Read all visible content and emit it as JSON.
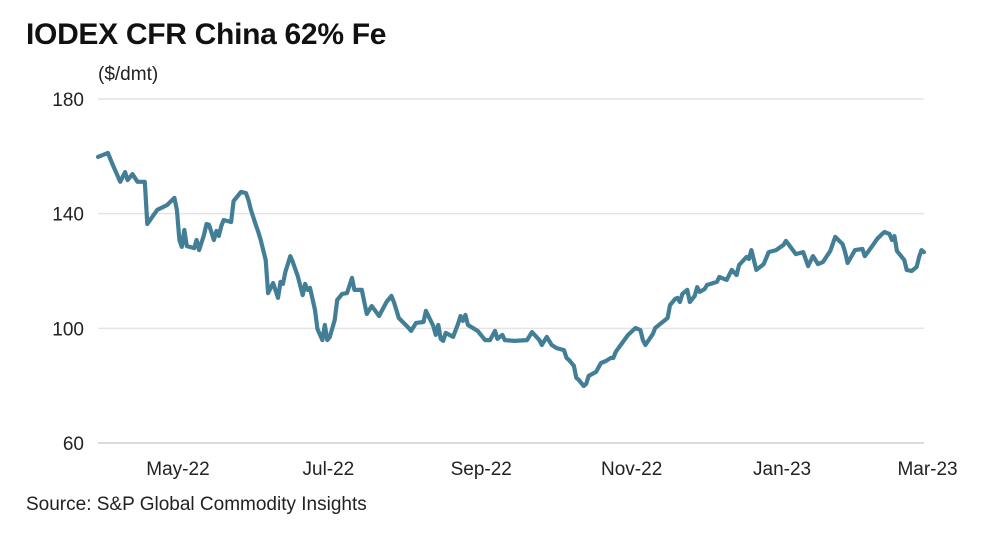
{
  "chart_data": {
    "type": "line",
    "title": "IODEX CFR China 62% Fe",
    "ylabel": "($/dmt)",
    "source": "Source: S&P Global Commodity Insights",
    "ylim": [
      60,
      180
    ],
    "yticks": [
      "180",
      "140",
      "100",
      "60"
    ],
    "ytick_values": [
      180,
      140,
      100,
      60
    ],
    "xlim": [
      "2022-04-01",
      "2023-03-02"
    ],
    "xticks": [
      {
        "label": "May-22",
        "date": "2022-05-01"
      },
      {
        "label": "Jul-22",
        "date": "2022-07-01"
      },
      {
        "label": "Sep-22",
        "date": "2022-09-01"
      },
      {
        "label": "Nov-22",
        "date": "2022-11-01"
      },
      {
        "label": "Jan-23",
        "date": "2023-01-01"
      },
      {
        "label": "Mar-23",
        "date": "2023-03-01"
      }
    ],
    "grid": "horizontal",
    "line_color": "#427f96",
    "series": [
      {
        "points": [
          [
            "2022-04-01",
            159.8
          ],
          [
            "2022-04-05",
            161.2
          ],
          [
            "2022-04-07",
            157.0
          ],
          [
            "2022-04-10",
            151.1
          ],
          [
            "2022-04-12",
            154.5
          ],
          [
            "2022-04-13",
            151.7
          ],
          [
            "2022-04-15",
            153.8
          ],
          [
            "2022-04-17",
            151.1
          ],
          [
            "2022-04-20",
            151.1
          ],
          [
            "2022-04-21",
            136.4
          ],
          [
            "2022-04-25",
            141.3
          ],
          [
            "2022-04-29",
            143.0
          ],
          [
            "2022-05-02",
            145.5
          ],
          [
            "2022-05-03",
            141.3
          ],
          [
            "2022-05-04",
            130.8
          ],
          [
            "2022-05-05",
            128.4
          ],
          [
            "2022-05-06",
            134.3
          ],
          [
            "2022-05-07",
            128.7
          ],
          [
            "2022-05-10",
            128.0
          ],
          [
            "2022-05-11",
            130.8
          ],
          [
            "2022-05-12",
            127.3
          ],
          [
            "2022-05-14",
            132.6
          ],
          [
            "2022-05-15",
            136.4
          ],
          [
            "2022-05-16",
            136.1
          ],
          [
            "2022-05-18",
            130.8
          ],
          [
            "2022-05-19",
            134.0
          ],
          [
            "2022-05-20",
            132.2
          ],
          [
            "2022-05-21",
            135.7
          ],
          [
            "2022-05-22",
            137.8
          ],
          [
            "2022-05-25",
            137.1
          ],
          [
            "2022-05-26",
            144.4
          ],
          [
            "2022-05-28",
            146.5
          ],
          [
            "2022-05-29",
            147.6
          ],
          [
            "2022-05-31",
            147.2
          ],
          [
            "2022-06-01",
            144.8
          ],
          [
            "2022-06-02",
            141.3
          ],
          [
            "2022-06-04",
            136.1
          ],
          [
            "2022-06-05",
            133.6
          ],
          [
            "2022-06-06",
            130.8
          ],
          [
            "2022-06-08",
            123.8
          ],
          [
            "2022-06-09",
            112.3
          ],
          [
            "2022-06-11",
            115.8
          ],
          [
            "2022-06-13",
            110.6
          ],
          [
            "2022-06-14",
            116.2
          ],
          [
            "2022-06-15",
            115.5
          ],
          [
            "2022-06-16",
            119.7
          ],
          [
            "2022-06-18",
            125.2
          ],
          [
            "2022-06-19",
            123.1
          ],
          [
            "2022-06-21",
            118.3
          ],
          [
            "2022-06-23",
            111.6
          ],
          [
            "2022-06-24",
            115.5
          ],
          [
            "2022-06-25",
            113.4
          ],
          [
            "2022-06-26",
            114.1
          ],
          [
            "2022-06-28",
            106.4
          ],
          [
            "2022-06-29",
            99.8
          ],
          [
            "2022-07-01",
            95.9
          ],
          [
            "2022-07-02",
            101.2
          ],
          [
            "2022-07-03",
            95.9
          ],
          [
            "2022-07-04",
            97.0
          ],
          [
            "2022-07-06",
            102.9
          ],
          [
            "2022-07-07",
            109.9
          ],
          [
            "2022-07-09",
            112.0
          ],
          [
            "2022-07-11",
            112.3
          ],
          [
            "2022-07-13",
            117.6
          ],
          [
            "2022-07-14",
            113.4
          ],
          [
            "2022-07-17",
            113.4
          ],
          [
            "2022-07-19",
            105.0
          ],
          [
            "2022-07-21",
            107.8
          ],
          [
            "2022-07-24",
            104.3
          ],
          [
            "2022-07-27",
            109.2
          ],
          [
            "2022-07-29",
            111.3
          ],
          [
            "2022-07-30",
            109.2
          ],
          [
            "2022-08-01",
            103.6
          ],
          [
            "2022-08-05",
            100.1
          ],
          [
            "2022-08-06",
            99.1
          ],
          [
            "2022-08-08",
            101.9
          ],
          [
            "2022-08-11",
            102.2
          ],
          [
            "2022-08-12",
            106.1
          ],
          [
            "2022-08-15",
            100.8
          ],
          [
            "2022-08-16",
            97.7
          ],
          [
            "2022-08-17",
            101.2
          ],
          [
            "2022-08-18",
            96.3
          ],
          [
            "2022-08-19",
            95.6
          ],
          [
            "2022-08-20",
            98.4
          ],
          [
            "2022-08-23",
            97.0
          ],
          [
            "2022-08-25",
            101.5
          ],
          [
            "2022-08-26",
            104.3
          ],
          [
            "2022-08-27",
            102.6
          ],
          [
            "2022-08-28",
            104.7
          ],
          [
            "2022-08-29",
            101.2
          ],
          [
            "2022-09-02",
            99.1
          ],
          [
            "2022-09-05",
            95.9
          ],
          [
            "2022-09-07",
            95.9
          ],
          [
            "2022-09-09",
            99.1
          ],
          [
            "2022-09-10",
            96.3
          ],
          [
            "2022-09-12",
            97.7
          ],
          [
            "2022-09-13",
            95.9
          ],
          [
            "2022-09-17",
            95.6
          ],
          [
            "2022-09-22",
            95.9
          ],
          [
            "2022-09-24",
            98.7
          ],
          [
            "2022-09-27",
            95.9
          ],
          [
            "2022-09-28",
            94.2
          ],
          [
            "2022-09-30",
            97.0
          ],
          [
            "2022-10-02",
            94.2
          ],
          [
            "2022-10-04",
            93.1
          ],
          [
            "2022-10-07",
            92.4
          ],
          [
            "2022-10-08",
            89.7
          ],
          [
            "2022-10-09",
            89.0
          ],
          [
            "2022-10-11",
            86.9
          ],
          [
            "2022-10-12",
            82.7
          ],
          [
            "2022-10-13",
            82.0
          ],
          [
            "2022-10-15",
            79.9
          ],
          [
            "2022-10-16",
            80.6
          ],
          [
            "2022-10-17",
            83.4
          ],
          [
            "2022-10-20",
            84.8
          ],
          [
            "2022-10-22",
            87.9
          ],
          [
            "2022-10-24",
            88.6
          ],
          [
            "2022-10-26",
            89.7
          ],
          [
            "2022-10-27",
            89.7
          ],
          [
            "2022-10-28",
            91.8
          ],
          [
            "2022-10-30",
            94.2
          ],
          [
            "2022-11-02",
            97.7
          ],
          [
            "2022-11-05",
            100.1
          ],
          [
            "2022-11-07",
            99.4
          ],
          [
            "2022-11-08",
            95.9
          ],
          [
            "2022-11-09",
            94.2
          ],
          [
            "2022-11-12",
            98.0
          ],
          [
            "2022-11-13",
            100.1
          ],
          [
            "2022-11-16",
            102.2
          ],
          [
            "2022-11-18",
            103.6
          ],
          [
            "2022-11-19",
            108.1
          ],
          [
            "2022-11-21",
            110.2
          ],
          [
            "2022-11-22",
            110.6
          ],
          [
            "2022-11-23",
            109.2
          ],
          [
            "2022-11-24",
            112.0
          ],
          [
            "2022-11-26",
            113.4
          ],
          [
            "2022-11-27",
            109.2
          ],
          [
            "2022-11-29",
            111.3
          ],
          [
            "2022-11-30",
            114.4
          ],
          [
            "2022-12-01",
            112.7
          ],
          [
            "2022-12-03",
            113.7
          ],
          [
            "2022-12-04",
            115.1
          ],
          [
            "2022-12-08",
            116.2
          ],
          [
            "2022-12-09",
            117.9
          ],
          [
            "2022-12-12",
            116.9
          ],
          [
            "2022-12-14",
            120.4
          ],
          [
            "2022-12-16",
            118.6
          ],
          [
            "2022-12-17",
            122.1
          ],
          [
            "2022-12-20",
            124.9
          ],
          [
            "2022-12-21",
            124.2
          ],
          [
            "2022-12-22",
            127.3
          ],
          [
            "2022-12-23",
            123.8
          ],
          [
            "2022-12-24",
            120.4
          ],
          [
            "2022-12-27",
            122.4
          ],
          [
            "2022-12-29",
            126.6
          ],
          [
            "2023-01-01",
            127.3
          ],
          [
            "2023-01-04",
            129.1
          ],
          [
            "2023-01-05",
            130.5
          ],
          [
            "2023-01-06",
            129.4
          ],
          [
            "2023-01-09",
            125.9
          ],
          [
            "2023-01-12",
            126.6
          ],
          [
            "2023-01-14",
            121.7
          ],
          [
            "2023-01-16",
            125.2
          ],
          [
            "2023-01-18",
            122.4
          ],
          [
            "2023-01-20",
            123.1
          ],
          [
            "2023-01-23",
            127.0
          ],
          [
            "2023-01-25",
            131.9
          ],
          [
            "2023-01-28",
            129.4
          ],
          [
            "2023-01-29",
            126.6
          ],
          [
            "2023-01-30",
            122.8
          ],
          [
            "2023-02-02",
            127.3
          ],
          [
            "2023-02-05",
            127.7
          ],
          [
            "2023-02-06",
            125.2
          ],
          [
            "2023-02-09",
            128.7
          ],
          [
            "2023-02-11",
            131.2
          ],
          [
            "2023-02-13",
            132.9
          ],
          [
            "2023-02-14",
            133.6
          ],
          [
            "2023-02-16",
            132.9
          ],
          [
            "2023-02-17",
            130.8
          ],
          [
            "2023-02-18",
            132.2
          ],
          [
            "2023-02-19",
            127.0
          ],
          [
            "2023-02-22",
            123.8
          ],
          [
            "2023-02-23",
            120.4
          ],
          [
            "2023-02-25",
            120.0
          ],
          [
            "2023-02-27",
            121.4
          ],
          [
            "2023-02-28",
            124.9
          ],
          [
            "2023-03-01",
            127.3
          ],
          [
            "2023-03-02",
            126.6
          ]
        ]
      }
    ]
  }
}
